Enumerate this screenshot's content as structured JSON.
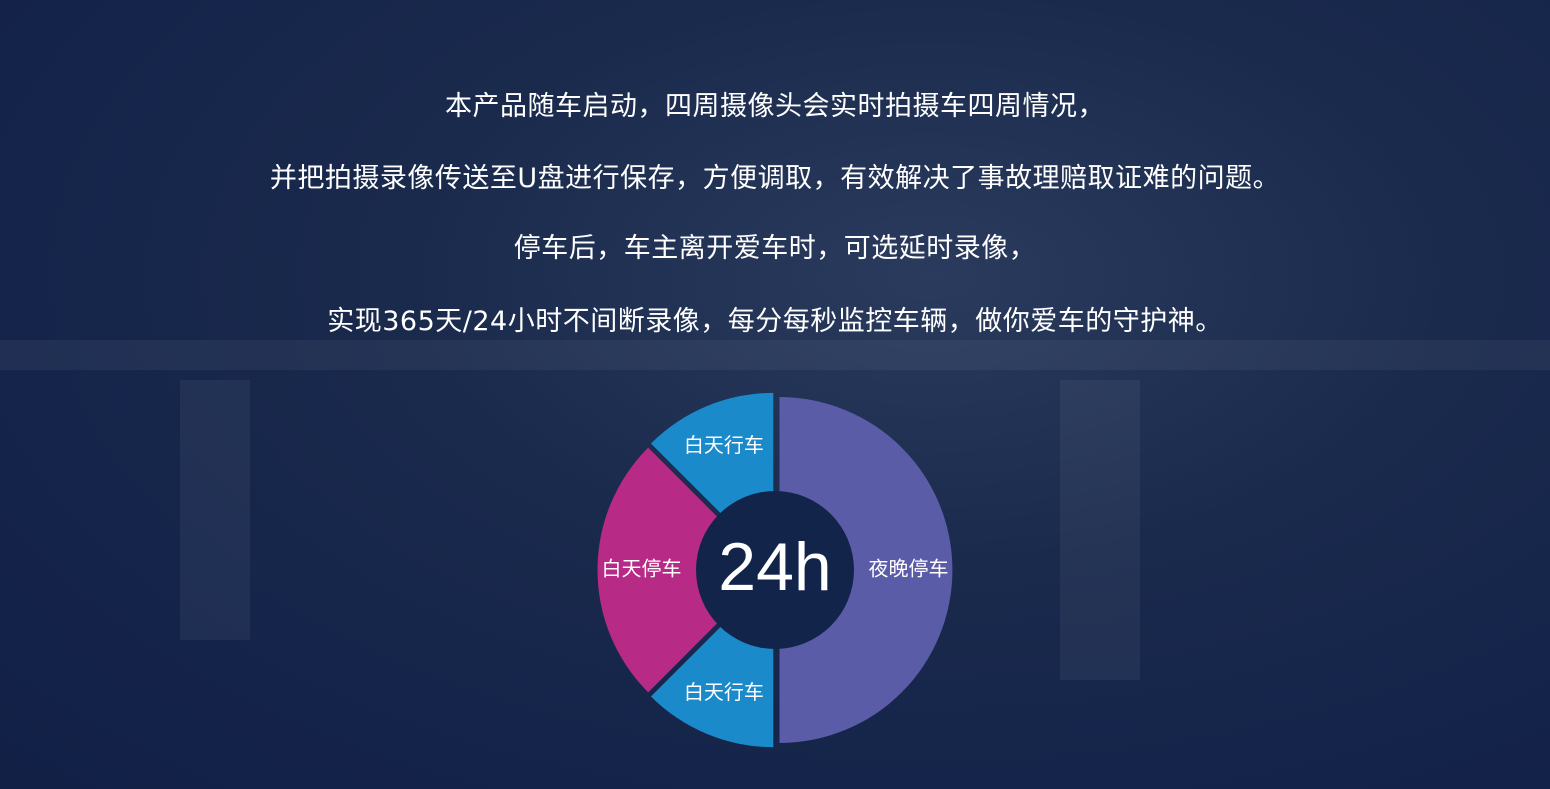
{
  "text": {
    "line1": "本产品随车启动，四周摄像头会实时拍摄车四周情况，",
    "line2": "并把拍摄录像传送至U盘进行保存，方便调取，有效解决了事故理赔取证难的问题。",
    "line3": "停车后，车主离开爱车时，可选延时录像，",
    "line4": "实现365天/24小时不间断录像，每分每秒监控车辆，做你爱车的守护神。"
  },
  "chart_data": {
    "type": "pie",
    "variant": "donut",
    "center_label": "24h",
    "categories": [
      "夜晚停车",
      "白天行车",
      "白天停车",
      "白天行车"
    ],
    "values": [
      12,
      3,
      6,
      3
    ],
    "colors": [
      "#5b5ca8",
      "#1b8acb",
      "#b72b86",
      "#1b8acb"
    ]
  }
}
